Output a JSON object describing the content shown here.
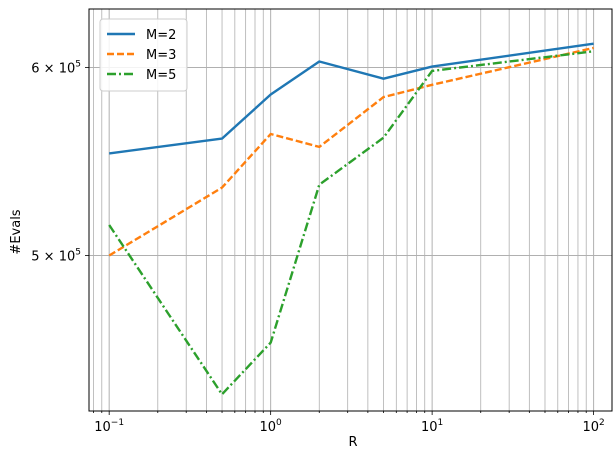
{
  "chart_data": {
    "type": "line",
    "title": "",
    "xlabel": "R",
    "ylabel": "#Evals",
    "xscale": "log",
    "yscale": "log",
    "xlim": [
      0.075,
      130
    ],
    "ylim": [
      430000,
      635000
    ],
    "grid": "on (major and minor, both axes)",
    "legend_position": "upper-left",
    "x_ticks": [
      {
        "value": 0.1,
        "base": "10",
        "exp": "−1"
      },
      {
        "value": 1,
        "base": "10",
        "exp": "0"
      },
      {
        "value": 10,
        "base": "10",
        "exp": "1"
      },
      {
        "value": 100,
        "base": "10",
        "exp": "2"
      }
    ],
    "y_ticks": [
      {
        "value": 500000,
        "mant": "5 × 10",
        "exp": "5"
      },
      {
        "value": 600000,
        "mant": "6 × 10",
        "exp": "5"
      }
    ],
    "x": [
      0.1,
      0.5,
      1,
      2,
      5,
      10,
      100
    ],
    "series": [
      {
        "name": "M=2",
        "color": "#1f77b4",
        "dash": "solid",
        "values": [
          552000,
          560000,
          584500,
          603500,
          593500,
          600500,
          614000
        ]
      },
      {
        "name": "M=3",
        "color": "#ff7f0e",
        "dash": "dashed",
        "values": [
          500000,
          534000,
          562500,
          555500,
          583000,
          590000,
          611500
        ]
      },
      {
        "name": "M=5",
        "color": "#2ca02c",
        "dash": "dashdot",
        "values": [
          515000,
          437000,
          459500,
          535500,
          560500,
          598000,
          609500
        ]
      }
    ]
  }
}
